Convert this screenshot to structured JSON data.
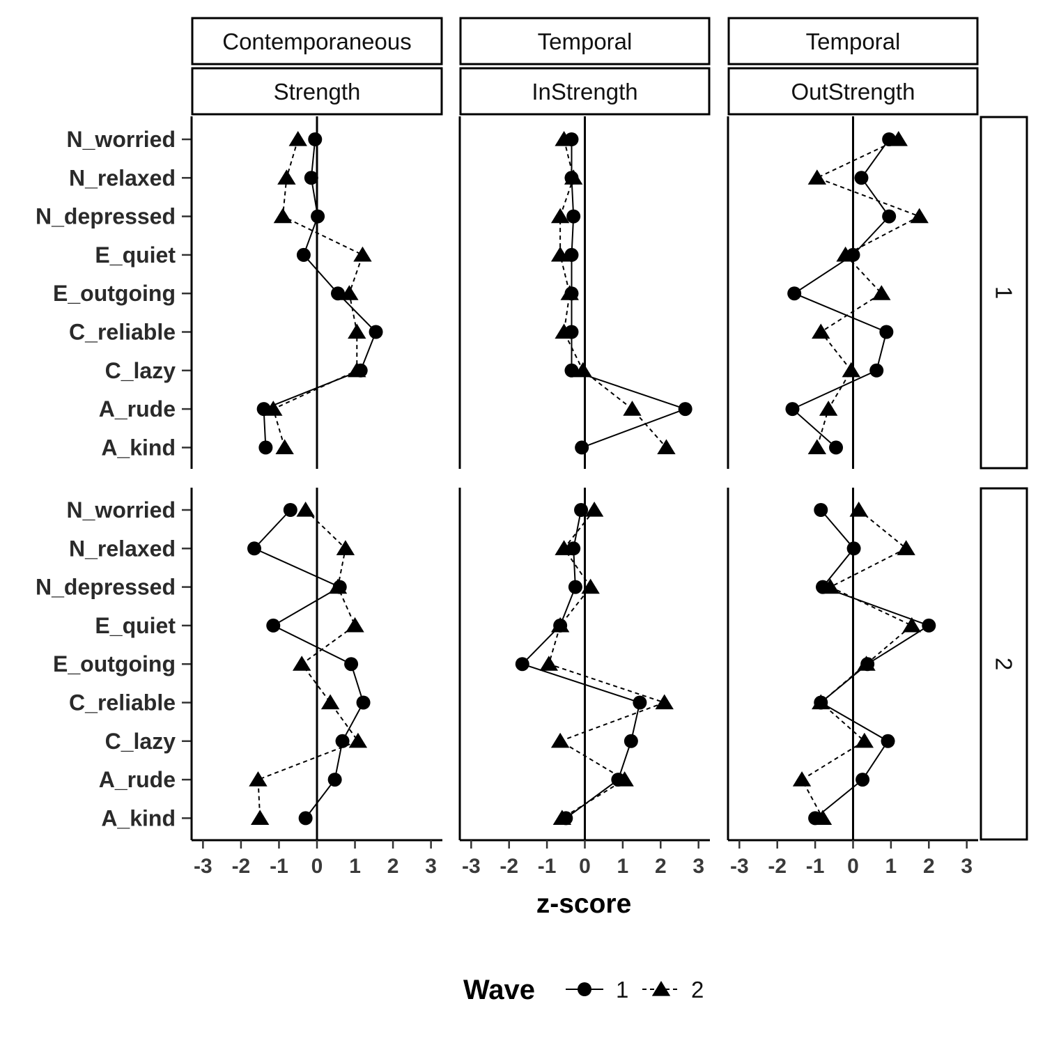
{
  "chart_data": {
    "type": "scatter",
    "facets": {
      "columns": [
        {
          "top": "Contemporaneous",
          "bottom": "Strength"
        },
        {
          "top": "Temporal",
          "bottom": "InStrength"
        },
        {
          "top": "Temporal",
          "bottom": "OutStrength"
        }
      ],
      "rows": [
        "1",
        "2"
      ]
    },
    "categories": [
      "N_worried",
      "N_relaxed",
      "N_depressed",
      "E_quiet",
      "E_outgoing",
      "C_reliable",
      "C_lazy",
      "A_rude",
      "A_kind"
    ],
    "xlabel": "z-score",
    "xlim": [
      -3.3,
      3.3
    ],
    "xticks": [
      -3,
      -2,
      -1,
      0,
      1,
      2,
      3
    ],
    "reference_line_x": 0,
    "legend": {
      "title": "Wave",
      "position": "bottom",
      "entries": [
        "1",
        "2"
      ]
    },
    "panels": [
      {
        "row": "1",
        "column": "Strength",
        "series": [
          {
            "name": "1",
            "values": [
              -0.05,
              -0.15,
              0.02,
              -0.35,
              0.55,
              1.55,
              1.15,
              -1.4,
              -1.35
            ]
          },
          {
            "name": "2",
            "values": [
              -0.5,
              -0.8,
              -0.9,
              1.2,
              0.85,
              1.05,
              1.05,
              -1.15,
              -0.85
            ]
          }
        ]
      },
      {
        "row": "1",
        "column": "InStrength",
        "series": [
          {
            "name": "1",
            "values": [
              -0.35,
              -0.35,
              -0.3,
              -0.35,
              -0.35,
              -0.35,
              -0.35,
              2.65,
              -0.08
            ]
          },
          {
            "name": "2",
            "values": [
              -0.55,
              -0.3,
              -0.65,
              -0.65,
              -0.4,
              -0.55,
              -0.05,
              1.25,
              2.15
            ]
          }
        ]
      },
      {
        "row": "1",
        "column": "OutStrength",
        "series": [
          {
            "name": "1",
            "values": [
              0.95,
              0.22,
              0.95,
              0.0,
              -1.55,
              0.88,
              0.62,
              -1.6,
              -0.45
            ]
          },
          {
            "name": "2",
            "values": [
              1.2,
              -0.95,
              1.75,
              -0.2,
              0.75,
              -0.85,
              -0.05,
              -0.65,
              -0.95
            ]
          }
        ]
      },
      {
        "row": "2",
        "column": "Strength",
        "series": [
          {
            "name": "1",
            "values": [
              -0.7,
              -1.65,
              0.6,
              -1.15,
              0.9,
              1.22,
              0.67,
              0.47,
              -0.3
            ]
          },
          {
            "name": "2",
            "values": [
              -0.3,
              0.75,
              0.55,
              1.0,
              -0.4,
              0.35,
              1.08,
              -1.55,
              -1.5
            ]
          }
        ]
      },
      {
        "row": "2",
        "column": "InStrength",
        "series": [
          {
            "name": "1",
            "values": [
              -0.1,
              -0.3,
              -0.25,
              -0.65,
              -1.65,
              1.45,
              1.22,
              0.88,
              -0.5
            ]
          },
          {
            "name": "2",
            "values": [
              0.25,
              -0.55,
              0.15,
              -0.65,
              -0.95,
              2.1,
              -0.65,
              1.05,
              -0.6
            ]
          }
        ]
      },
      {
        "row": "2",
        "column": "OutStrength",
        "series": [
          {
            "name": "1",
            "values": [
              -0.85,
              0.02,
              -0.8,
              2.0,
              0.38,
              -0.85,
              0.92,
              0.25,
              -1.0
            ]
          },
          {
            "name": "2",
            "values": [
              0.15,
              1.4,
              -0.6,
              1.55,
              0.35,
              -0.85,
              0.3,
              -1.35,
              -0.8
            ]
          }
        ]
      }
    ]
  }
}
